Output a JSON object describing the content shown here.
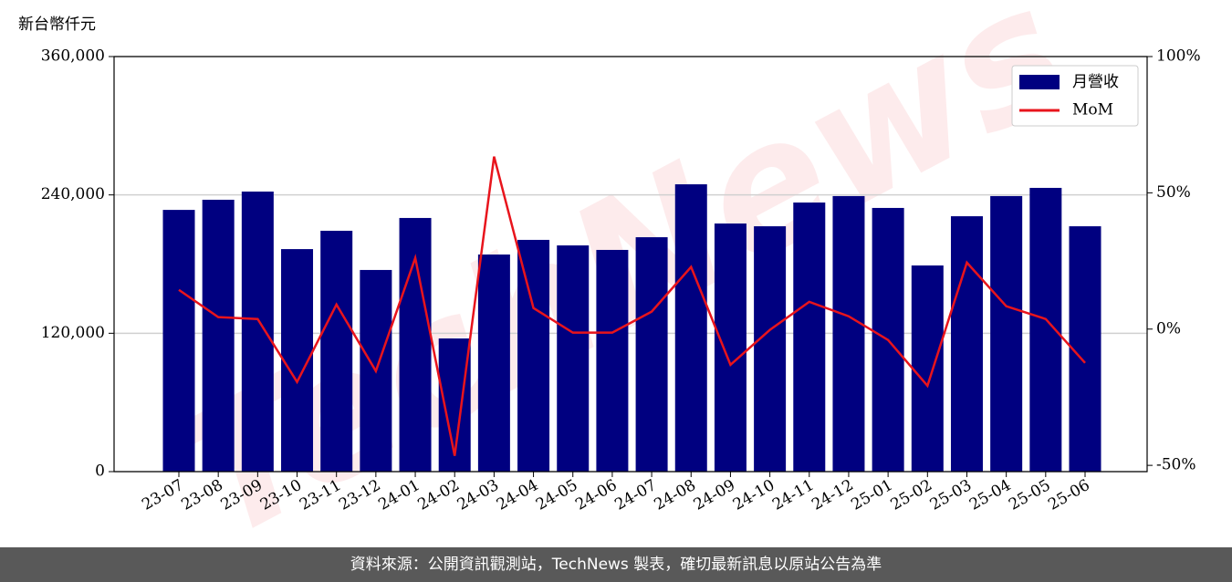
{
  "chart_data": {
    "type": "bar-line",
    "y_label": "新台幣仟元",
    "watermark": "TechNews",
    "categories": [
      "23-07",
      "23-08",
      "23-09",
      "23-10",
      "23-11",
      "23-12",
      "24-01",
      "24-02",
      "24-03",
      "24-04",
      "24-05",
      "24-06",
      "24-07",
      "24-08",
      "24-09",
      "24-10",
      "24-11",
      "24-12",
      "25-01",
      "25-02",
      "25-03",
      "25-04",
      "25-05",
      "25-06"
    ],
    "series": [
      {
        "name": "月營收",
        "type": "bar",
        "color": "#000080",
        "values": [
          227000,
          235800,
          242900,
          193000,
          208900,
          174900,
          220000,
          115500,
          188300,
          201000,
          196200,
          192300,
          203300,
          249200,
          215200,
          212800,
          233400,
          239000,
          228700,
          178800,
          221500,
          239000,
          246100,
          212800
        ]
      },
      {
        "name": "MoM",
        "type": "line",
        "axis": "y2",
        "color": "#e8141c",
        "values": [
          14.4,
          4.4,
          3.7,
          -19.4,
          9.0,
          -15.4,
          26.1,
          -46.5,
          63.3,
          7.7,
          -1.3,
          -1.3,
          6.4,
          22.8,
          -13.1,
          -0.3,
          10.0,
          4.7,
          -4.0,
          -20.8,
          24.4,
          8.4,
          3.7,
          -12.4
        ]
      }
    ],
    "ylim": [
      0,
      360000
    ],
    "yticks": [
      0,
      {
        "value": 120000,
        "label": "120,000"
      },
      {
        "value": 240000,
        "label": "240,000"
      },
      {
        "value": 360000,
        "label": "360,000"
      }
    ],
    "y2lim": [
      -52.3,
      100
    ],
    "y2ticks": [
      {
        "value": -50,
        "label": "-50%"
      },
      {
        "value": 0,
        "label": "0%"
      },
      {
        "value": 50,
        "label": "50%"
      },
      {
        "value": 100,
        "label": "100%"
      }
    ],
    "grid": true,
    "legend": "upper right"
  },
  "footer": "資料來源：公開資訊觀測站，TechNews 製表，確切最新訊息以原站公告為準"
}
